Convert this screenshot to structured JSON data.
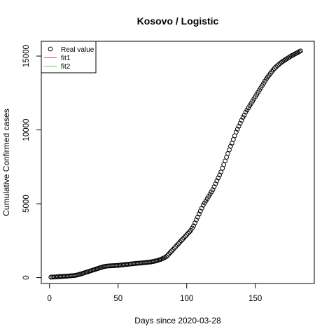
{
  "chart_data": {
    "type": "scatter",
    "title": "Kosovo / Logistic",
    "xlabel": "Days since 2020-03-28",
    "ylabel": "Cumulative Confirmed cases",
    "xlim": [
      -6,
      193
    ],
    "ylim": [
      -400,
      16000
    ],
    "xticks": [
      0,
      50,
      100,
      150
    ],
    "yticks": [
      0,
      5000,
      10000,
      15000
    ],
    "legend_position": "top-left",
    "legend": [
      {
        "label": "Real value",
        "kind": "point",
        "color": "#000000"
      },
      {
        "label": "fit1",
        "kind": "line",
        "color": "#DF536B"
      },
      {
        "label": "fit2",
        "kind": "line",
        "color": "#61D04F"
      }
    ],
    "series": [
      {
        "name": "Real value",
        "marker": "open-circle",
        "color": "#000000",
        "x_start": 1,
        "x_step": 1,
        "y": [
          30,
          35,
          40,
          46,
          52,
          58,
          64,
          70,
          76,
          82,
          88,
          94,
          100,
          108,
          116,
          124,
          132,
          140,
          155,
          175,
          200,
          225,
          250,
          280,
          310,
          340,
          370,
          400,
          430,
          460,
          490,
          520,
          550,
          580,
          610,
          640,
          670,
          700,
          730,
          750,
          770,
          780,
          790,
          795,
          800,
          805,
          810,
          815,
          820,
          830,
          840,
          850,
          860,
          870,
          880,
          890,
          900,
          910,
          920,
          930,
          940,
          950,
          960,
          970,
          975,
          980,
          990,
          1000,
          1010,
          1020,
          1030,
          1040,
          1050,
          1060,
          1080,
          1100,
          1120,
          1140,
          1170,
          1200,
          1230,
          1270,
          1310,
          1360,
          1420,
          1500,
          1600,
          1700,
          1800,
          1900,
          2000,
          2100,
          2200,
          2300,
          2400,
          2500,
          2600,
          2700,
          2800,
          2900,
          3000,
          3100,
          3200,
          3350,
          3500,
          3700,
          3900,
          4100,
          4300,
          4500,
          4700,
          4900,
          5050,
          5200,
          5350,
          5500,
          5650,
          5800,
          5950,
          6150,
          6350,
          6550,
          6750,
          6950,
          7150,
          7400,
          7650,
          7900,
          8150,
          8400,
          8650,
          8900,
          9100,
          9350,
          9600,
          9850,
          10050,
          10250,
          10450,
          10650,
          10850,
          11000,
          11200,
          11350,
          11500,
          11650,
          11800,
          11950,
          12100,
          12250,
          12400,
          12550,
          12700,
          12850,
          13000,
          13150,
          13300,
          13450,
          13580,
          13700,
          13820,
          13940,
          14060,
          14160,
          14260,
          14340,
          14420,
          14500,
          14570,
          14640,
          14700,
          14760,
          14820,
          14880,
          14940,
          15000,
          15050,
          15100,
          15150,
          15200,
          15250,
          15300,
          15350
        ]
      }
    ]
  }
}
